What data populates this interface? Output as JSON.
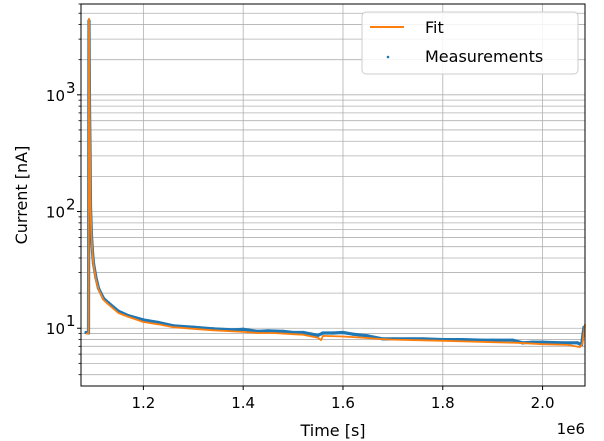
{
  "chart_data": {
    "type": "line",
    "xlabel": "Time [s]",
    "ylabel": "Current [nA]",
    "x_offset_label": "1e6",
    "x_scale": "linear",
    "y_scale": "log",
    "xlim": [
      1075000,
      2085000
    ],
    "ylim": [
      3.2,
      6000
    ],
    "x_ticks": [
      1200000,
      1400000,
      1600000,
      1800000,
      2000000
    ],
    "x_tick_labels": [
      "1.2",
      "1.4",
      "1.6",
      "1.8",
      "2.0"
    ],
    "y_ticks": [
      10,
      100,
      1000
    ],
    "y_tick_labels": [
      "10",
      "10",
      "10"
    ],
    "y_tick_exponents": [
      "1",
      "2",
      "3"
    ],
    "grid": true,
    "legend": {
      "placement": "top-right",
      "entries": [
        {
          "label": "Fit",
          "style": "line",
          "color": "#ff7f0e"
        },
        {
          "label": "Measurements",
          "style": "point",
          "color": "#1f77b4"
        }
      ]
    },
    "series": [
      {
        "name": "Measurements",
        "kind": "scatter",
        "color": "#1f77b4",
        "x": [
          1085000,
          1090000,
          1091000,
          1092000,
          1093000,
          1094000,
          1096000,
          1098000,
          1100000,
          1105000,
          1110000,
          1120000,
          1130000,
          1150000,
          1170000,
          1200000,
          1230000,
          1260000,
          1300000,
          1340000,
          1380000,
          1400000,
          1430000,
          1450000,
          1480000,
          1500000,
          1520000,
          1550000,
          1560000,
          1580000,
          1600000,
          1620000,
          1650000,
          1680000,
          1700000,
          1740000,
          1760000,
          1800000,
          1840000,
          1880000,
          1900000,
          1940000,
          1960000,
          1980000,
          2000000,
          2040000,
          2070000,
          2078000,
          2083000
        ],
        "y": [
          9.2,
          9.1,
          4300,
          800,
          370,
          110,
          62,
          45,
          36,
          27,
          22,
          18,
          16.5,
          14,
          12.8,
          11.8,
          11.2,
          10.5,
          10.2,
          9.9,
          9.7,
          9.8,
          9.4,
          9.5,
          9.4,
          9.2,
          9.2,
          8.7,
          9.1,
          9.1,
          9.2,
          8.9,
          8.6,
          8.1,
          8.1,
          8.1,
          8.1,
          8.0,
          8.0,
          7.9,
          7.9,
          7.9,
          7.5,
          7.6,
          7.6,
          7.5,
          7.5,
          7.2,
          10.2
        ]
      },
      {
        "name": "Fit",
        "kind": "line",
        "color": "#ff7f0e",
        "x": [
          1085000,
          1089000,
          1090000,
          1091000,
          1092000,
          1093000,
          1094000,
          1096000,
          1098000,
          1100000,
          1105000,
          1110000,
          1120000,
          1130000,
          1150000,
          1170000,
          1200000,
          1230000,
          1260000,
          1300000,
          1340000,
          1380000,
          1400000,
          1430000,
          1460000,
          1500000,
          1520000,
          1550000,
          1556000,
          1560000,
          1600000,
          1640000,
          1670000,
          1700000,
          1750000,
          1800000,
          1850000,
          1900000,
          1950000,
          2000000,
          2050000,
          2075000,
          2080000,
          2085000
        ],
        "y": [
          9.0,
          9.0,
          9.0,
          4500,
          800,
          350,
          110,
          60,
          44,
          35,
          26,
          21.5,
          17.5,
          16,
          13.5,
          12.5,
          11.3,
          10.8,
          10.2,
          9.9,
          9.6,
          9.4,
          9.3,
          9.1,
          9.1,
          8.9,
          8.8,
          8.3,
          7.9,
          8.6,
          8.5,
          8.3,
          8.1,
          8.0,
          7.9,
          7.8,
          7.7,
          7.6,
          7.5,
          7.3,
          7.2,
          6.9,
          7.4,
          10.8
        ]
      }
    ]
  }
}
